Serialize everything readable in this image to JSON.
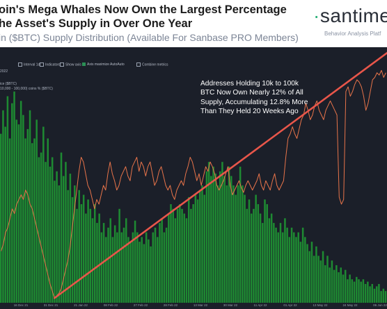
{
  "header": {
    "title_line1": "oin's Mega Whales Now Own the Largest Percentage",
    "title_line2": "he Asset's Supply in Over One Year",
    "subtitle": "in ($BTC) Supply Distribution (Available For Sanbase PRO Members)",
    "brand": "santime",
    "tagline": "Behavior Analysis Platf"
  },
  "toolbar": {
    "items": [
      "Interval 1d",
      "Indicators",
      "Show axis",
      "Axis maximize AutoAuto",
      "Combine metrics"
    ]
  },
  "legend": {
    "date": "2022",
    "line1": "ice ($BTC)",
    "line2": "10,000 - 100,000) coins % ($BTC)"
  },
  "annotation": {
    "lines": [
      "Addresses Holding 10k to 100k",
      "BTC Now Own Nearly 12% of All",
      "Supply, Accumulating 12.8% More",
      "Than They Held 20 Weeks Ago"
    ]
  },
  "colors": {
    "bars": "#1e8a32",
    "line": "#e8744a",
    "arrow": "#e8564a",
    "background": "#1b1f29"
  },
  "chart_data": {
    "type": "bar",
    "series": [
      {
        "name": "",
        "kind": "bar",
        "color": "#1e8a32",
        "values": [
          0.72,
          0.82,
          0.75,
          0.88,
          0.7,
          0.85,
          0.9,
          0.78,
          0.76,
          0.86,
          0.8,
          0.7,
          0.74,
          0.82,
          0.68,
          0.7,
          0.78,
          0.62,
          0.64,
          0.75,
          0.6,
          0.7,
          0.58,
          0.62,
          0.52,
          0.56,
          0.5,
          0.64,
          0.54,
          0.6,
          0.48,
          0.55,
          0.45,
          0.5,
          0.4,
          0.48,
          0.42,
          0.46,
          0.38,
          0.44,
          0.4,
          0.36,
          0.42,
          0.34,
          0.38,
          0.3,
          0.34,
          0.28,
          0.32,
          0.36,
          0.28,
          0.33,
          0.3,
          0.4,
          0.3,
          0.32,
          0.36,
          0.28,
          0.26,
          0.3,
          0.35,
          0.3,
          0.26,
          0.28,
          0.25,
          0.3,
          0.27,
          0.24,
          0.3,
          0.32,
          0.28,
          0.34,
          0.36,
          0.3,
          0.32,
          0.38,
          0.42,
          0.4,
          0.36,
          0.4,
          0.42,
          0.4,
          0.38,
          0.36,
          0.45,
          0.4,
          0.42,
          0.46,
          0.44,
          0.48,
          0.5,
          0.46,
          0.56,
          0.6,
          0.54,
          0.58,
          0.55,
          0.5,
          0.56,
          0.6,
          0.54,
          0.5,
          0.58,
          0.54,
          0.5,
          0.46,
          0.5,
          0.58,
          0.5,
          0.46,
          0.4,
          0.44,
          0.38,
          0.4,
          0.46,
          0.42,
          0.38,
          0.34,
          0.44,
          0.42,
          0.36,
          0.38,
          0.34,
          0.32,
          0.3,
          0.34,
          0.3,
          0.36,
          0.32,
          0.28,
          0.32,
          0.3,
          0.28,
          0.3,
          0.26,
          0.32,
          0.28,
          0.25,
          0.22,
          0.26,
          0.2,
          0.24,
          0.2,
          0.18,
          0.22,
          0.16,
          0.2,
          0.15,
          0.18,
          0.14,
          0.16,
          0.13,
          0.15,
          0.12,
          0.14,
          0.1,
          0.12,
          0.1,
          0.09,
          0.11,
          0.1,
          0.09,
          0.1,
          0.08,
          0.09,
          0.07,
          0.08,
          0.06,
          0.07,
          0.08,
          0.05,
          0.06,
          0.05
        ]
      },
      {
        "name": "",
        "kind": "line",
        "color": "#e8744a",
        "values": [
          0.22,
          0.25,
          0.3,
          0.32,
          0.36,
          0.4,
          0.38,
          0.42,
          0.44,
          0.46,
          0.44,
          0.48,
          0.46,
          0.42,
          0.4,
          0.36,
          0.32,
          0.28,
          0.24,
          0.2,
          0.16,
          0.12,
          0.08,
          0.05,
          0.02,
          0.03,
          0.04,
          0.06,
          0.1,
          0.14,
          0.18,
          0.24,
          0.32,
          0.4,
          0.48,
          0.56,
          0.62,
          0.6,
          0.55,
          0.5,
          0.48,
          0.44,
          0.4,
          0.44,
          0.42,
          0.46,
          0.5,
          0.48,
          0.55,
          0.6,
          0.55,
          0.52,
          0.48,
          0.5,
          0.54,
          0.56,
          0.58,
          0.54,
          0.52,
          0.58,
          0.6,
          0.62,
          0.56,
          0.6,
          0.58,
          0.54,
          0.58,
          0.6,
          0.55,
          0.5,
          0.52,
          0.56,
          0.58,
          0.54,
          0.5,
          0.48,
          0.5,
          0.46,
          0.44,
          0.48,
          0.5,
          0.52,
          0.5,
          0.55,
          0.58,
          0.62,
          0.6,
          0.56,
          0.52,
          0.55,
          0.5,
          0.54,
          0.58,
          0.56,
          0.6,
          0.58,
          0.55,
          0.5,
          0.48,
          0.5,
          0.52,
          0.55,
          0.58,
          0.5,
          0.46,
          0.48,
          0.5,
          0.52,
          0.49,
          0.47,
          0.5,
          0.52,
          0.5,
          0.48,
          0.5,
          0.52,
          0.55,
          0.5,
          0.48,
          0.52,
          0.5,
          0.48,
          0.52,
          0.55,
          0.5,
          0.48,
          0.5,
          0.52,
          0.62,
          0.7,
          0.72,
          0.75,
          0.72,
          0.7,
          0.74,
          0.78,
          0.8,
          0.85,
          0.82,
          0.78,
          0.8,
          0.84,
          0.86,
          0.82,
          0.8,
          0.78,
          0.82,
          0.84,
          0.86,
          0.84,
          0.82,
          0.8,
          0.45,
          0.42,
          0.44,
          0.9,
          0.92,
          0.88,
          0.9,
          0.93,
          0.95,
          0.94,
          0.92,
          0.88,
          0.82,
          0.85,
          0.9,
          0.95,
          0.96,
          0.98,
          0.97,
          0.99,
          0.96,
          0.98
        ]
      }
    ],
    "x_tick_labels": [
      "16 Dec 21",
      "31 Dec 21",
      "21 Jan 22",
      "08 Feb 22",
      "27 Feb 22",
      "28 Feb 22",
      "13 Mar 22",
      "30 Mar 22",
      "11 Apr 22",
      "01 Apr 22",
      "13 May 22",
      "24 May 22",
      "06 Jun 22"
    ],
    "annotation_arrow": {
      "from_index": 24,
      "to_index": 177
    },
    "grid": false,
    "legend": "top-left"
  }
}
